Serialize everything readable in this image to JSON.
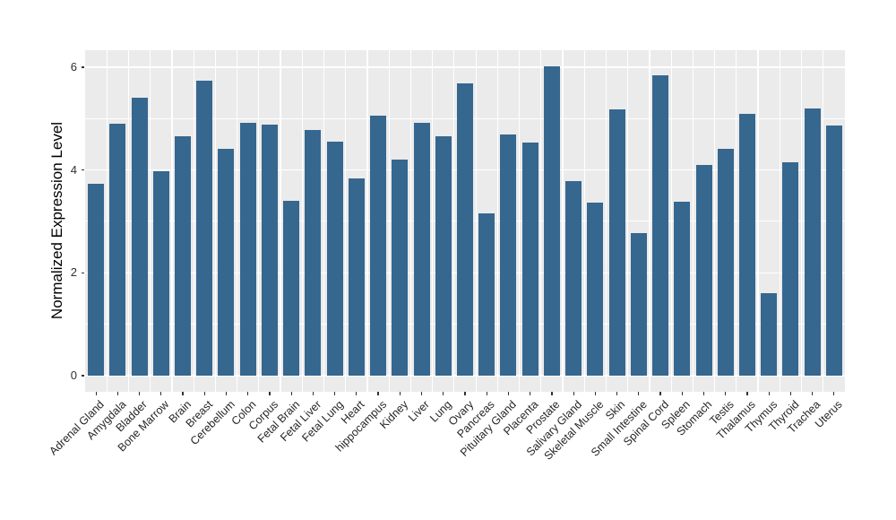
{
  "chart_data": {
    "type": "bar",
    "title": "",
    "xlabel": "",
    "ylabel": "Normalized Expression Level",
    "ylim": [
      0,
      6.33
    ],
    "yticks": [
      0,
      2,
      4,
      6
    ],
    "yticks_minor": [
      1,
      3,
      5
    ],
    "grid": "on",
    "legend_position": "none",
    "bar_color": "#36678F",
    "panel_bg": "#EBEBEB",
    "grid_color": "#FFFFFF",
    "axis_text_color": "#303030",
    "categories": [
      "Adrenal Gland",
      "Amygdala",
      "Bladder",
      "Bone Marrow",
      "Brain",
      "Breast",
      "Cerebellum",
      "Colon",
      "Corpus",
      "Fetal Brain",
      "Fetal Liver",
      "Fetal Lung",
      "Heart",
      "hippocampus",
      "Kidney",
      "Liver",
      "Lung",
      "Ovary",
      "Pancreas",
      "Pituitary Gland",
      "Placenta",
      "Prostate",
      "Salivary Gland",
      "Skeletal Muscle",
      "Skin",
      "Small Intestine",
      "Spinal Cord",
      "Spleen",
      "Stomach",
      "Testis",
      "Thalamus",
      "Thymus",
      "Thyroid",
      "Trachea",
      "Uterus"
    ],
    "values": [
      3.74,
      4.9,
      5.41,
      3.98,
      4.66,
      5.74,
      4.41,
      4.92,
      4.88,
      3.41,
      4.78,
      4.56,
      3.83,
      5.06,
      4.21,
      4.92,
      4.66,
      5.69,
      3.15,
      4.7,
      4.54,
      6.02,
      3.78,
      3.36,
      5.18,
      2.77,
      5.85,
      3.38,
      4.1,
      4.41,
      5.1,
      1.6,
      4.16,
      5.19,
      4.87
    ]
  }
}
